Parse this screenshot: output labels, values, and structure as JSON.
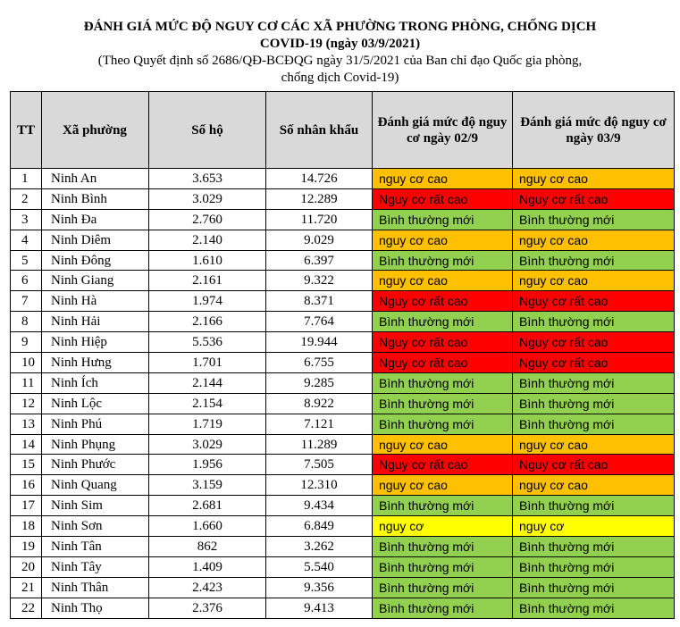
{
  "title_line1": "ĐÁNH GIÁ MỨC ĐỘ NGUY CƠ CÁC XÃ PHƯỜNG TRONG PHÒNG, CHỐNG DỊCH",
  "title_line2": "COVID-19 (ngày 03/9/2021)",
  "subtitle_line1": "(Theo Quyết định số 2686/QĐ-BCĐQG ngày 31/5/2021 của Ban chỉ đạo Quốc gia phòng,",
  "subtitle_line2": "chống dịch Covid-19)",
  "table": {
    "headers": {
      "tt": "TT",
      "name": "Xã phường",
      "households": "Số hộ",
      "population": "Số nhân khẩu",
      "risk_0209": "Đánh giá mức độ nguy cơ ngày 02/9",
      "risk_0309": "Đánh giá mức độ nguy cơ ngày 03/9"
    },
    "colors": {
      "header_bg": "#d9d9d9",
      "nguy cơ cao": "#ffc000",
      "Nguy cơ rất cao": "#ff0000",
      "Bình thường mới": "#92d050",
      "nguy cơ": "#ffff00"
    },
    "rows": [
      {
        "tt": "1",
        "name": "Ninh An",
        "households": "3.653",
        "population": "14.726",
        "risk_0209": "nguy cơ cao",
        "risk_0309": "nguy cơ cao"
      },
      {
        "tt": "2",
        "name": "Ninh Bình",
        "households": "3.029",
        "population": "12.289",
        "risk_0209": "Nguy cơ rất cao",
        "risk_0309": "Nguy cơ rất cao"
      },
      {
        "tt": "3",
        "name": "Ninh Đa",
        "households": "2.760",
        "population": "11.720",
        "risk_0209": "Bình thường mới",
        "risk_0309": "Bình thường mới"
      },
      {
        "tt": "4",
        "name": "Ninh Diêm",
        "households": "2.140",
        "population": "9.029",
        "risk_0209": "nguy cơ cao",
        "risk_0309": "nguy cơ cao"
      },
      {
        "tt": "5",
        "name": "Ninh Đông",
        "households": "1.610",
        "population": "6.397",
        "risk_0209": "Bình thường mới",
        "risk_0309": "Bình thường mới"
      },
      {
        "tt": "6",
        "name": "Ninh Giang",
        "households": "2.161",
        "population": "9.322",
        "risk_0209": "nguy cơ cao",
        "risk_0309": "nguy cơ cao"
      },
      {
        "tt": "7",
        "name": "Ninh Hà",
        "households": "1.974",
        "population": "8.371",
        "risk_0209": "Nguy cơ rất cao",
        "risk_0309": "Nguy cơ rất cao"
      },
      {
        "tt": "8",
        "name": "Ninh Hải",
        "households": "2.166",
        "population": "7.764",
        "risk_0209": "Bình thường mới",
        "risk_0309": "Bình thường mới"
      },
      {
        "tt": "9",
        "name": "Ninh Hiệp",
        "households": "5.536",
        "population": "19.944",
        "risk_0209": "Nguy cơ rất cao",
        "risk_0309": "Nguy cơ rất cao"
      },
      {
        "tt": "10",
        "name": "Ninh Hưng",
        "households": "1.701",
        "population": "6.755",
        "risk_0209": "Nguy cơ rất cao",
        "risk_0309": "Nguy cơ rất cao"
      },
      {
        "tt": "11",
        "name": "Ninh Ích",
        "households": "2.144",
        "population": "9.285",
        "risk_0209": "Bình thường mới",
        "risk_0309": "Bình thường mới"
      },
      {
        "tt": "12",
        "name": "Ninh Lộc",
        "households": "2.154",
        "population": "8.922",
        "risk_0209": "Bình thường mới",
        "risk_0309": "Bình thường mới"
      },
      {
        "tt": "13",
        "name": "Ninh Phú",
        "households": "1.719",
        "population": "7.121",
        "risk_0209": "Bình thường mới",
        "risk_0309": "Bình thường mới"
      },
      {
        "tt": "14",
        "name": "Ninh Phụng",
        "households": "3.029",
        "population": "11.289",
        "risk_0209": "nguy cơ cao",
        "risk_0309": "nguy cơ cao"
      },
      {
        "tt": "15",
        "name": "Ninh Phước",
        "households": "1.956",
        "population": "7.505",
        "risk_0209": "Nguy cơ rất cao",
        "risk_0309": "Nguy cơ rất cao"
      },
      {
        "tt": "16",
        "name": "Ninh Quang",
        "households": "3.159",
        "population": "12.310",
        "risk_0209": "nguy cơ cao",
        "risk_0309": "nguy cơ cao"
      },
      {
        "tt": "17",
        "name": "Ninh Sim",
        "households": "2.681",
        "population": "9.434",
        "risk_0209": "Bình thường mới",
        "risk_0309": "Bình thường mới"
      },
      {
        "tt": "18",
        "name": "Ninh Sơn",
        "households": "1.660",
        "population": "6.849",
        "risk_0209": "nguy cơ",
        "risk_0309": "nguy cơ"
      },
      {
        "tt": "19",
        "name": "Ninh Tân",
        "households": "862",
        "population": "3.262",
        "risk_0209": "Bình thường mới",
        "risk_0309": "Bình thường mới"
      },
      {
        "tt": "20",
        "name": "Ninh Tây",
        "households": "1.409",
        "population": "5.540",
        "risk_0209": "Bình thường mới",
        "risk_0309": "Bình thường mới"
      },
      {
        "tt": "21",
        "name": "Ninh Thân",
        "households": "2.423",
        "population": "9.356",
        "risk_0209": "Bình thường mới",
        "risk_0309": "Bình thường mới"
      },
      {
        "tt": "22",
        "name": "Ninh Thọ",
        "households": "2.376",
        "population": "9.413",
        "risk_0209": "Bình thường mới",
        "risk_0309": "Bình thường mới"
      }
    ]
  }
}
